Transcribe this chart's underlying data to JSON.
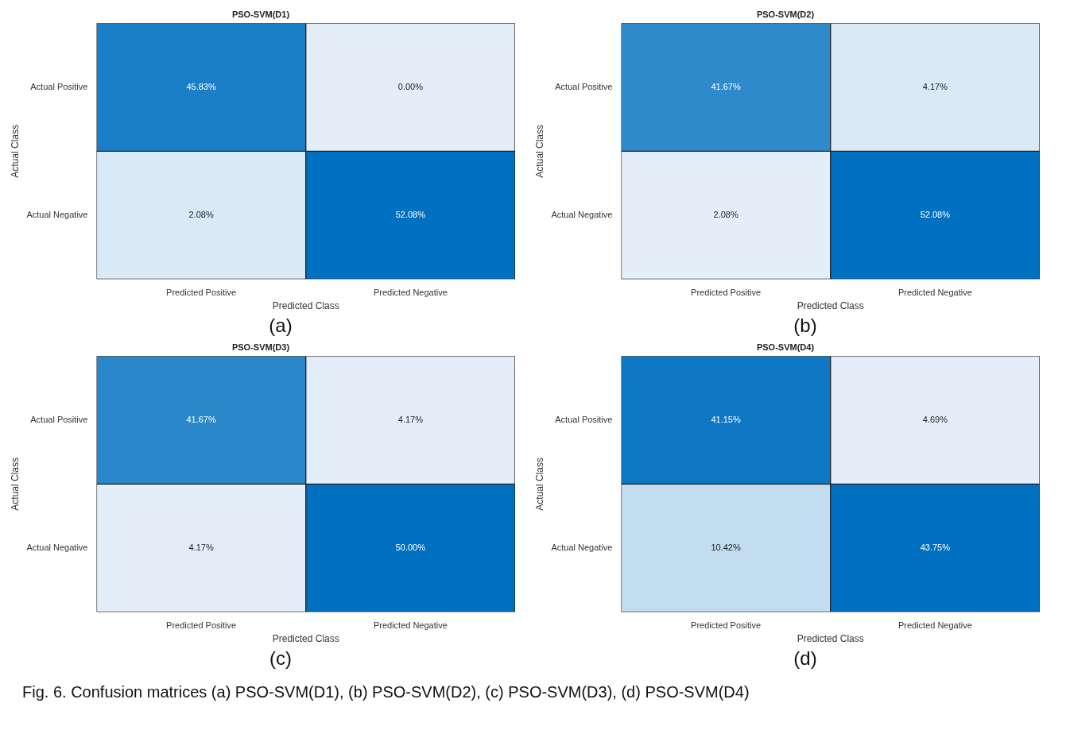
{
  "chart_data": [
    {
      "type": "heatmap",
      "title": "PSO-SVM(D1)",
      "xlabel": "Predicted Class",
      "ylabel": "Actual Class",
      "categories": [
        "Predicted Positive",
        "Predicted Negative"
      ],
      "y_categories": [
        "Actual Positive",
        "Actual Negative"
      ],
      "cells": [
        [
          45.83,
          0.0
        ],
        [
          2.08,
          52.08
        ]
      ],
      "cell_labels": [
        [
          "45.83%",
          "0.00%"
        ],
        [
          "2.08%",
          "52.08%"
        ]
      ],
      "annotations": [
        "(a)"
      ]
    },
    {
      "type": "heatmap",
      "title": "PSO-SVM(D2)",
      "xlabel": "Predicted Class",
      "ylabel": "Actual Class",
      "categories": [
        "Predicted Positive",
        "Predicted Negative"
      ],
      "y_categories": [
        "Actual Positive",
        "Actual Negative"
      ],
      "cells": [
        [
          41.67,
          4.17
        ],
        [
          2.08,
          52.08
        ]
      ],
      "cell_labels": [
        [
          "41.67%",
          "4.17%"
        ],
        [
          "2.08%",
          "52.08%"
        ]
      ],
      "annotations": [
        "(b)"
      ]
    },
    {
      "type": "heatmap",
      "title": "PSO-SVM(D3)",
      "xlabel": "Predicted Class",
      "ylabel": "Actual Class",
      "categories": [
        "Predicted Positive",
        "Predicted Negative"
      ],
      "y_categories": [
        "Actual Positive",
        "Actual Negative"
      ],
      "cells": [
        [
          41.67,
          4.17
        ],
        [
          4.17,
          50.0
        ]
      ],
      "cell_labels": [
        [
          "41.67%",
          "4.17%"
        ],
        [
          "4.17%",
          "50.00%"
        ]
      ],
      "annotations": [
        "(c)"
      ]
    },
    {
      "type": "heatmap",
      "title": "PSO-SVM(D4)",
      "xlabel": "Predicted Class",
      "ylabel": "Actual Class",
      "categories": [
        "Predicted Positive",
        "Predicted Negative"
      ],
      "y_categories": [
        "Actual Positive",
        "Actual Negative"
      ],
      "cells": [
        [
          41.15,
          4.69
        ],
        [
          10.42,
          43.75
        ]
      ],
      "cell_labels": [
        [
          "41.15%",
          "4.69%"
        ],
        [
          "10.42%",
          "43.75%"
        ]
      ],
      "annotations": [
        "(d)"
      ]
    },
    {
      "type": "other",
      "annotations": [
        "Fig. 6. Confusion matrices (a) PSO-SVM(D1), (b) PSO-SVM(D2), (c) PSO-SVM(D3), (d) PSO-SVM(D4)"
      ]
    }
  ]
}
